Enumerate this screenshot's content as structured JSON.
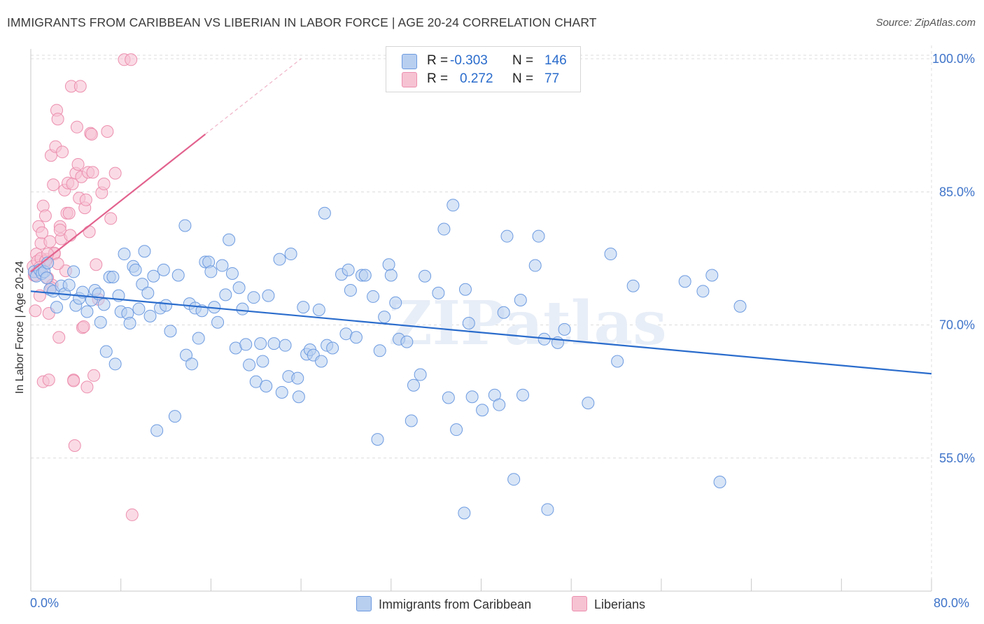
{
  "title": "IMMIGRANTS FROM CARIBBEAN VS LIBERIAN IN LABOR FORCE | AGE 20-24 CORRELATION CHART",
  "source": "Source: ZipAtlas.com",
  "watermark": "ZIPatlas",
  "colors": {
    "blue_fill": "#b8cff0",
    "blue_stroke": "#6d9be0",
    "blue_line": "#2a6ccc",
    "pink_fill": "#f6c3d3",
    "pink_stroke": "#ec8fae",
    "pink_line": "#e2628e",
    "grid": "#dcdcdc",
    "tick_text": "#3f74c9"
  },
  "legend": {
    "rows": [
      {
        "r_label": "R =",
        "r_value": "-0.303",
        "n_label": "N =",
        "n_value": "146"
      },
      {
        "r_label": "R =",
        "r_value": "0.272",
        "n_label": "N =",
        "n_value": "77"
      }
    ]
  },
  "bottom_legend": {
    "series1": "Immigrants from Caribbean",
    "series2": "Liberians"
  },
  "chart_data": {
    "type": "scatter",
    "title": "IMMIGRANTS FROM CARIBBEAN VS LIBERIAN IN LABOR FORCE | AGE 20-24 CORRELATION CHART",
    "xlabel": "",
    "ylabel": "In Labor Force | Age 20-24",
    "xlim": [
      0,
      80
    ],
    "ylim": [
      40,
      101.5
    ],
    "x_tick_labels": [
      "0.0%",
      "80.0%"
    ],
    "y_ticks": [
      55,
      70,
      85,
      100
    ],
    "y_tick_labels": [
      "55.0%",
      "70.0%",
      "85.0%",
      "100.0%"
    ],
    "grid": true,
    "series": [
      {
        "name": "Immigrants from Caribbean",
        "R": -0.303,
        "N": 146,
        "trend": {
          "x": [
            0,
            80
          ],
          "y": [
            73.8,
            64.5
          ]
        },
        "points": [
          [
            0.3,
            76.0
          ],
          [
            0.5,
            75.5
          ],
          [
            0.8,
            76.2
          ],
          [
            1.0,
            75.8
          ],
          [
            1.2,
            76.0
          ],
          [
            1.5,
            77.0
          ],
          [
            1.4,
            75.3
          ],
          [
            1.7,
            74.0
          ],
          [
            2.0,
            73.8
          ],
          [
            2.3,
            72.0
          ],
          [
            2.7,
            74.4
          ],
          [
            3.0,
            73.5
          ],
          [
            3.4,
            74.5
          ],
          [
            3.8,
            76.0
          ],
          [
            4.0,
            72.2
          ],
          [
            4.3,
            73.0
          ],
          [
            4.6,
            73.7
          ],
          [
            5.0,
            71.5
          ],
          [
            5.4,
            72.8
          ],
          [
            5.7,
            73.9
          ],
          [
            6.0,
            73.5
          ],
          [
            6.2,
            70.3
          ],
          [
            6.5,
            72.3
          ],
          [
            6.7,
            67.0
          ],
          [
            7.0,
            75.4
          ],
          [
            7.3,
            75.4
          ],
          [
            7.5,
            65.6
          ],
          [
            7.8,
            73.3
          ],
          [
            8.0,
            71.5
          ],
          [
            8.3,
            78.0
          ],
          [
            8.6,
            71.3
          ],
          [
            8.8,
            70.2
          ],
          [
            9.1,
            76.6
          ],
          [
            9.3,
            76.2
          ],
          [
            9.6,
            71.8
          ],
          [
            9.9,
            74.6
          ],
          [
            10.1,
            78.3
          ],
          [
            10.4,
            73.6
          ],
          [
            10.6,
            71.0
          ],
          [
            10.9,
            75.5
          ],
          [
            11.2,
            58.1
          ],
          [
            11.5,
            71.9
          ],
          [
            11.8,
            76.2
          ],
          [
            12.0,
            72.2
          ],
          [
            12.4,
            69.3
          ],
          [
            12.8,
            59.7
          ],
          [
            13.1,
            75.6
          ],
          [
            13.7,
            81.2
          ],
          [
            13.8,
            66.6
          ],
          [
            14.1,
            72.4
          ],
          [
            14.3,
            65.6
          ],
          [
            14.6,
            71.9
          ],
          [
            14.9,
            68.5
          ],
          [
            15.2,
            71.6
          ],
          [
            15.5,
            77.1
          ],
          [
            15.8,
            77.1
          ],
          [
            16.0,
            76.0
          ],
          [
            16.3,
            72.0
          ],
          [
            16.6,
            70.3
          ],
          [
            17.0,
            76.7
          ],
          [
            17.3,
            73.4
          ],
          [
            17.6,
            79.6
          ],
          [
            17.9,
            75.8
          ],
          [
            18.2,
            67.4
          ],
          [
            18.5,
            74.2
          ],
          [
            18.8,
            71.8
          ],
          [
            19.1,
            67.8
          ],
          [
            19.4,
            65.5
          ],
          [
            19.8,
            73.1
          ],
          [
            20.0,
            63.6
          ],
          [
            20.4,
            67.9
          ],
          [
            20.6,
            65.9
          ],
          [
            20.9,
            63.1
          ],
          [
            21.1,
            73.3
          ],
          [
            21.6,
            67.9
          ],
          [
            22.1,
            77.4
          ],
          [
            22.3,
            62.4
          ],
          [
            22.6,
            67.7
          ],
          [
            22.9,
            64.2
          ],
          [
            23.1,
            78.0
          ],
          [
            23.7,
            64.0
          ],
          [
            23.8,
            61.9
          ],
          [
            24.2,
            72.0
          ],
          [
            24.5,
            66.7
          ],
          [
            24.8,
            67.2
          ],
          [
            25.1,
            66.6
          ],
          [
            25.6,
            71.7
          ],
          [
            25.8,
            65.9
          ],
          [
            26.1,
            82.6
          ],
          [
            26.3,
            67.7
          ],
          [
            26.8,
            67.4
          ],
          [
            27.6,
            75.7
          ],
          [
            28.0,
            69.0
          ],
          [
            28.2,
            76.2
          ],
          [
            28.4,
            73.9
          ],
          [
            28.9,
            68.6
          ],
          [
            29.4,
            75.6
          ],
          [
            29.7,
            75.6
          ],
          [
            30.4,
            73.2
          ],
          [
            30.8,
            57.1
          ],
          [
            31.0,
            67.1
          ],
          [
            31.4,
            70.9
          ],
          [
            31.8,
            76.8
          ],
          [
            32.0,
            75.6
          ],
          [
            32.7,
            68.4
          ],
          [
            33.4,
            68.1
          ],
          [
            33.8,
            59.2
          ],
          [
            34.0,
            63.2
          ],
          [
            34.6,
            64.4
          ],
          [
            35.0,
            75.5
          ],
          [
            36.2,
            73.6
          ],
          [
            36.7,
            80.8
          ],
          [
            37.1,
            61.8
          ],
          [
            37.5,
            83.5
          ],
          [
            37.8,
            58.2
          ],
          [
            38.6,
            74.0
          ],
          [
            38.9,
            70.2
          ],
          [
            39.2,
            61.9
          ],
          [
            40.1,
            60.4
          ],
          [
            41.2,
            62.1
          ],
          [
            42.0,
            71.4
          ],
          [
            42.3,
            80.0
          ],
          [
            42.9,
            52.6
          ],
          [
            43.5,
            72.8
          ],
          [
            43.7,
            62.1
          ],
          [
            44.8,
            76.7
          ],
          [
            45.1,
            80.0
          ],
          [
            45.6,
            68.4
          ],
          [
            45.9,
            49.2
          ],
          [
            46.8,
            68.0
          ],
          [
            47.4,
            69.5
          ],
          [
            49.5,
            61.2
          ],
          [
            51.5,
            78.0
          ],
          [
            52.1,
            65.9
          ],
          [
            53.5,
            74.4
          ],
          [
            58.1,
            74.9
          ],
          [
            59.7,
            73.8
          ],
          [
            60.5,
            75.6
          ],
          [
            63.0,
            72.1
          ],
          [
            61.2,
            52.3
          ],
          [
            41.6,
            61.0
          ],
          [
            38.5,
            48.8
          ],
          [
            32.4,
            72.5
          ]
        ]
      },
      {
        "name": "Liberians",
        "R": 0.272,
        "N": 77,
        "trend": {
          "x": [
            0,
            15.5
          ],
          "y": [
            76.0,
            91.5
          ]
        },
        "trend_dashed": {
          "x": [
            15.5,
            24.0
          ],
          "y": [
            91.5,
            100.0
          ]
        },
        "points": [
          [
            0.2,
            76.6
          ],
          [
            0.3,
            75.6
          ],
          [
            0.4,
            71.6
          ],
          [
            0.5,
            78.0
          ],
          [
            0.6,
            77.2
          ],
          [
            0.7,
            81.1
          ],
          [
            0.8,
            73.3
          ],
          [
            0.9,
            79.2
          ],
          [
            1.0,
            80.4
          ],
          [
            1.1,
            83.4
          ],
          [
            1.2,
            76.7
          ],
          [
            1.3,
            82.3
          ],
          [
            1.4,
            77.4
          ],
          [
            1.5,
            75.3
          ],
          [
            1.6,
            71.3
          ],
          [
            1.7,
            79.4
          ],
          [
            1.8,
            89.1
          ],
          [
            1.9,
            74.5
          ],
          [
            2.0,
            85.8
          ],
          [
            2.1,
            78.0
          ],
          [
            2.2,
            90.1
          ],
          [
            2.3,
            94.2
          ],
          [
            2.4,
            93.2
          ],
          [
            2.5,
            68.6
          ],
          [
            2.6,
            81.1
          ],
          [
            2.7,
            79.7
          ],
          [
            2.8,
            89.5
          ],
          [
            3.0,
            85.2
          ],
          [
            3.1,
            76.1
          ],
          [
            3.2,
            82.6
          ],
          [
            3.3,
            86.0
          ],
          [
            3.4,
            82.6
          ],
          [
            3.5,
            80.1
          ],
          [
            3.6,
            96.9
          ],
          [
            3.7,
            85.9
          ],
          [
            3.8,
            63.8
          ],
          [
            3.9,
            56.4
          ],
          [
            4.0,
            87.1
          ],
          [
            4.1,
            92.3
          ],
          [
            4.2,
            88.1
          ],
          [
            4.3,
            84.3
          ],
          [
            4.4,
            96.9
          ],
          [
            4.5,
            86.7
          ],
          [
            4.6,
            69.7
          ],
          [
            4.7,
            69.8
          ],
          [
            4.8,
            83.2
          ],
          [
            4.9,
            84.1
          ],
          [
            5.0,
            63.0
          ],
          [
            5.1,
            87.2
          ],
          [
            5.2,
            80.5
          ],
          [
            5.3,
            91.6
          ],
          [
            5.4,
            91.5
          ],
          [
            5.5,
            87.2
          ],
          [
            5.6,
            64.3
          ],
          [
            5.8,
            76.8
          ],
          [
            6.0,
            72.9
          ],
          [
            6.3,
            84.9
          ],
          [
            6.5,
            85.9
          ],
          [
            6.8,
            91.8
          ],
          [
            7.1,
            82.0
          ],
          [
            7.5,
            87.1
          ],
          [
            8.3,
            99.9
          ],
          [
            8.9,
            99.9
          ],
          [
            9.0,
            48.6
          ],
          [
            0.6,
            76.0
          ],
          [
            0.9,
            77.5
          ],
          [
            1.3,
            77.2
          ],
          [
            2.1,
            78.1
          ],
          [
            1.8,
            74.2
          ],
          [
            2.4,
            76.9
          ],
          [
            1.1,
            63.6
          ],
          [
            1.6,
            63.8
          ],
          [
            0.4,
            75.6
          ],
          [
            0.8,
            76.5
          ],
          [
            1.5,
            78.0
          ],
          [
            2.6,
            80.7
          ],
          [
            3.8,
            63.7
          ]
        ]
      }
    ]
  }
}
